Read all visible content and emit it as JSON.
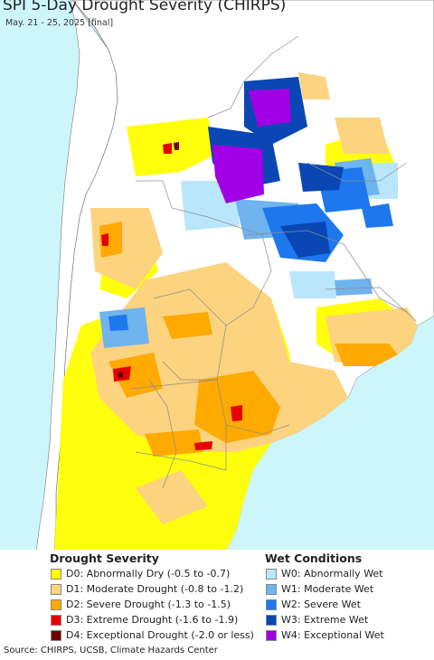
{
  "title": "SPI 5-Day Drought Severity (CHIRPS)",
  "subtitle": "May. 21 - 25, 2025 [final]",
  "colors": {
    "ocean": "#cdf6fb",
    "land": "#ffffff",
    "border": "#8c8c8c"
  },
  "legend": {
    "drought": {
      "heading": "Drought Severity",
      "items": [
        {
          "label": "D0: Abnormally Dry (-0.5 to -0.7)",
          "color": "#ffff00"
        },
        {
          "label": "D1: Moderate Drought (-0.8 to -1.2)",
          "color": "#fcd37f"
        },
        {
          "label": "D2: Severe Drought (-1.3 to -1.5)",
          "color": "#ffaa00"
        },
        {
          "label": "D3: Extreme Drought (-1.6 to -1.9)",
          "color": "#e60000"
        },
        {
          "label": "D4: Exceptional Drought (-2.0 or less)",
          "color": "#730000"
        }
      ]
    },
    "wet": {
      "heading": "Wet Conditions",
      "items": [
        {
          "label": "W0: Abnormally Wet",
          "color": "#b9e6fa"
        },
        {
          "label": "W1: Moderate Wet",
          "color": "#6fb3ef"
        },
        {
          "label": "W2: Severe Wet",
          "color": "#1d77ed"
        },
        {
          "label": "W3: Extreme Wet",
          "color": "#0a46b4"
        },
        {
          "label": "W4: Exceptional Wet",
          "color": "#a100e6"
        }
      ]
    }
  },
  "source": "Source: CHIRPS, UCSB, Climate Hazards Center"
}
